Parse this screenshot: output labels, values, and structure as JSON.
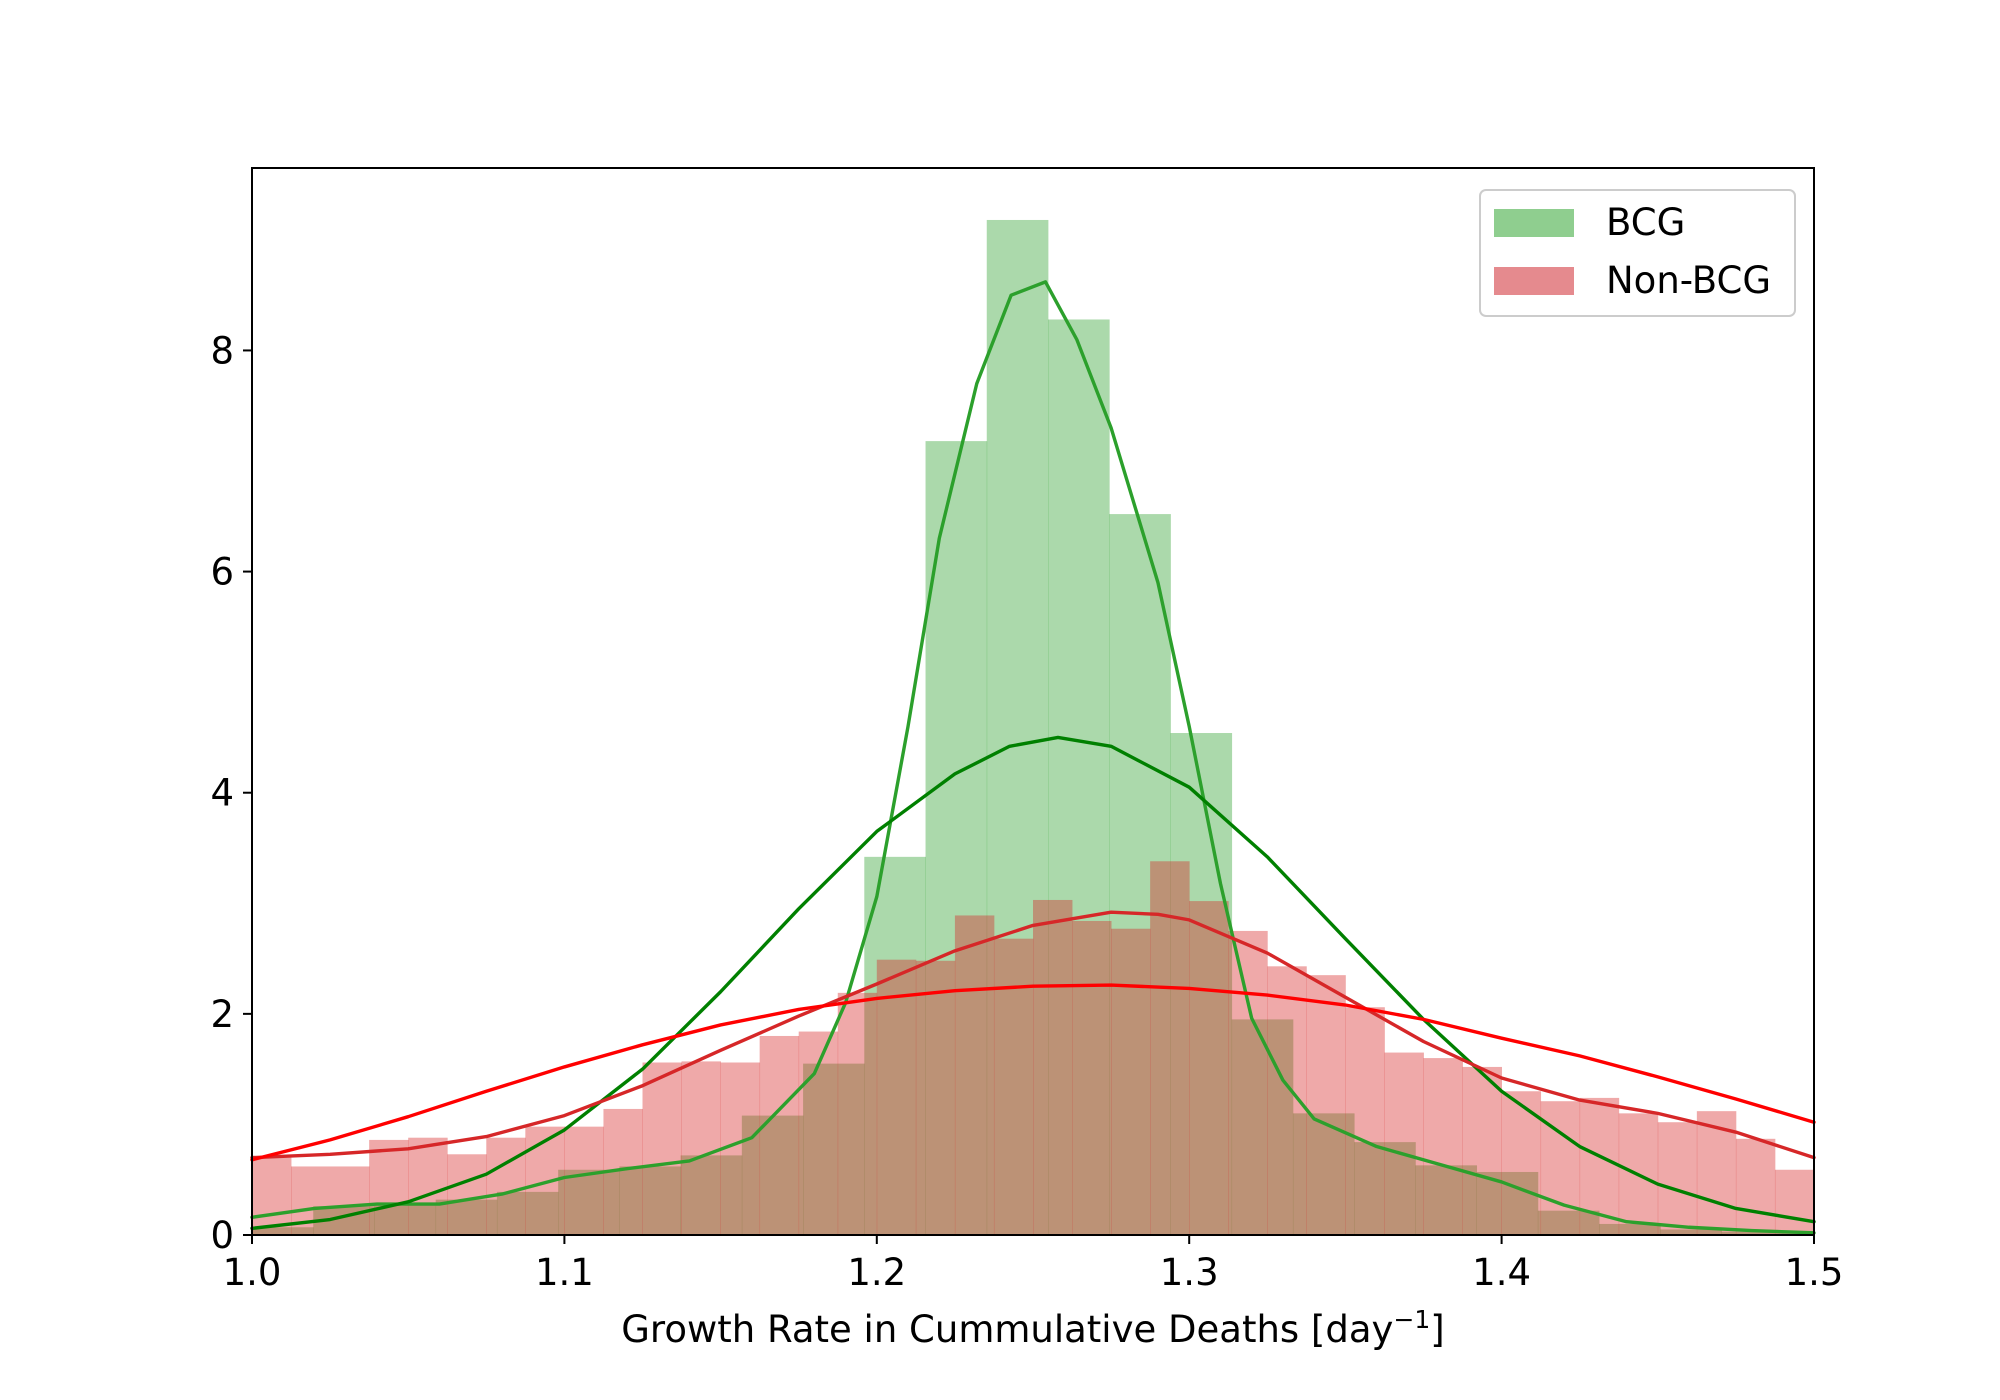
{
  "chart_data": {
    "type": "histogram",
    "title": "",
    "xlabel_prefix": "Growth Rate in Cummulative Deaths [day",
    "xlabel_sup": "−1",
    "xlabel_suffix": "]",
    "ylabel": "",
    "xlim": [
      1.0,
      1.5
    ],
    "ylim": [
      0,
      9.65
    ],
    "xticks": [
      {
        "v": 1.0,
        "label": "1.0"
      },
      {
        "v": 1.1,
        "label": "1.1"
      },
      {
        "v": 1.2,
        "label": "1.2"
      },
      {
        "v": 1.3,
        "label": "1.3"
      },
      {
        "v": 1.4,
        "label": "1.4"
      },
      {
        "v": 1.5,
        "label": "1.5"
      }
    ],
    "yticks": [
      {
        "v": 0,
        "label": "0"
      },
      {
        "v": 2,
        "label": "2"
      },
      {
        "v": 4,
        "label": "4"
      },
      {
        "v": 6,
        "label": "6"
      },
      {
        "v": 8,
        "label": "8"
      }
    ],
    "grid": false,
    "legend_position": "top-right",
    "legend": [
      {
        "label": "BCG",
        "color": "#8fce8f"
      },
      {
        "label": "Non-BCG",
        "color": "#e58a8e"
      }
    ],
    "series": [
      {
        "name": "BCG",
        "kind": "histogram",
        "color": "#2ca02c",
        "alpha": 0.4,
        "bins": [
          [
            1.0,
            1.0196,
            0.07
          ],
          [
            1.0196,
            1.0392,
            0.26
          ],
          [
            1.0392,
            1.0588,
            0.27
          ],
          [
            1.0588,
            1.0784,
            0.32
          ],
          [
            1.0784,
            1.098,
            0.39
          ],
          [
            1.098,
            1.1176,
            0.59
          ],
          [
            1.1176,
            1.1372,
            0.62
          ],
          [
            1.1372,
            1.1568,
            0.72
          ],
          [
            1.1568,
            1.1764,
            1.08
          ],
          [
            1.1764,
            1.196,
            1.55
          ],
          [
            1.196,
            1.2156,
            3.42
          ],
          [
            1.2156,
            1.2352,
            7.18
          ],
          [
            1.2352,
            1.2548,
            9.18
          ],
          [
            1.2548,
            1.2744,
            8.28
          ],
          [
            1.2744,
            1.294,
            6.52
          ],
          [
            1.294,
            1.3136,
            4.54
          ],
          [
            1.3136,
            1.3332,
            1.95
          ],
          [
            1.3332,
            1.3528,
            1.1
          ],
          [
            1.3528,
            1.3724,
            0.84
          ],
          [
            1.3724,
            1.392,
            0.63
          ],
          [
            1.392,
            1.4116,
            0.57
          ],
          [
            1.4116,
            1.4312,
            0.22
          ],
          [
            1.4312,
            1.4508,
            0.1
          ],
          [
            1.4508,
            1.4704,
            0.05
          ],
          [
            1.4704,
            1.49,
            0.03
          ],
          [
            1.49,
            1.5,
            0.02
          ]
        ]
      },
      {
        "name": "Non-BCG",
        "kind": "histogram",
        "color": "#d62728",
        "alpha": 0.4,
        "bins": [
          [
            1.0,
            1.0125,
            0.7
          ],
          [
            1.0125,
            1.0375,
            0.62
          ],
          [
            1.0375,
            1.05,
            0.86
          ],
          [
            1.05,
            1.0625,
            0.88
          ],
          [
            1.0625,
            1.075,
            0.73
          ],
          [
            1.075,
            1.0875,
            0.88
          ],
          [
            1.0875,
            1.1,
            0.98
          ],
          [
            1.1,
            1.1125,
            0.98
          ],
          [
            1.1125,
            1.125,
            1.14
          ],
          [
            1.125,
            1.1375,
            1.56
          ],
          [
            1.1375,
            1.15,
            1.57
          ],
          [
            1.15,
            1.1625,
            1.56
          ],
          [
            1.1625,
            1.175,
            1.8
          ],
          [
            1.175,
            1.1875,
            1.84
          ],
          [
            1.1875,
            1.2,
            2.19
          ],
          [
            1.2,
            1.2125,
            2.49
          ],
          [
            1.2125,
            1.225,
            2.48
          ],
          [
            1.225,
            1.2375,
            2.89
          ],
          [
            1.2375,
            1.25,
            2.68
          ],
          [
            1.25,
            1.2625,
            3.03
          ],
          [
            1.2625,
            1.275,
            2.84
          ],
          [
            1.275,
            1.2875,
            2.77
          ],
          [
            1.2875,
            1.3,
            3.38
          ],
          [
            1.3,
            1.3125,
            3.02
          ],
          [
            1.3125,
            1.325,
            2.75
          ],
          [
            1.325,
            1.3375,
            2.43
          ],
          [
            1.3375,
            1.35,
            2.35
          ],
          [
            1.35,
            1.3625,
            2.06
          ],
          [
            1.3625,
            1.375,
            1.65
          ],
          [
            1.375,
            1.3875,
            1.6
          ],
          [
            1.3875,
            1.4,
            1.52
          ],
          [
            1.4,
            1.4125,
            1.3
          ],
          [
            1.4125,
            1.425,
            1.21
          ],
          [
            1.425,
            1.4375,
            1.24
          ],
          [
            1.4375,
            1.45,
            1.1
          ],
          [
            1.45,
            1.4625,
            1.02
          ],
          [
            1.4625,
            1.475,
            1.12
          ],
          [
            1.475,
            1.4875,
            0.87
          ],
          [
            1.4875,
            1.5,
            0.59
          ]
        ]
      },
      {
        "name": "BCG",
        "kind": "line",
        "color": "#2ca02c",
        "points": [
          [
            1.0,
            0.16
          ],
          [
            1.02,
            0.24
          ],
          [
            1.04,
            0.28
          ],
          [
            1.06,
            0.28
          ],
          [
            1.08,
            0.37
          ],
          [
            1.1,
            0.52
          ],
          [
            1.12,
            0.6
          ],
          [
            1.14,
            0.67
          ],
          [
            1.16,
            0.88
          ],
          [
            1.18,
            1.46
          ],
          [
            1.19,
            2.1
          ],
          [
            1.2,
            3.06
          ],
          [
            1.21,
            4.6
          ],
          [
            1.22,
            6.3
          ],
          [
            1.232,
            7.7
          ],
          [
            1.243,
            8.5
          ],
          [
            1.254,
            8.62
          ],
          [
            1.264,
            8.1
          ],
          [
            1.275,
            7.3
          ],
          [
            1.29,
            5.9
          ],
          [
            1.3,
            4.6
          ],
          [
            1.31,
            3.18
          ],
          [
            1.32,
            1.96
          ],
          [
            1.33,
            1.4
          ],
          [
            1.34,
            1.05
          ],
          [
            1.36,
            0.8
          ],
          [
            1.38,
            0.64
          ],
          [
            1.4,
            0.48
          ],
          [
            1.42,
            0.27
          ],
          [
            1.44,
            0.12
          ],
          [
            1.46,
            0.07
          ],
          [
            1.48,
            0.04
          ],
          [
            1.5,
            0.02
          ]
        ]
      },
      {
        "name": "BCG",
        "kind": "line",
        "color": "#008000",
        "points": [
          [
            1.0,
            0.06
          ],
          [
            1.025,
            0.14
          ],
          [
            1.05,
            0.3
          ],
          [
            1.075,
            0.55
          ],
          [
            1.1,
            0.95
          ],
          [
            1.125,
            1.5
          ],
          [
            1.15,
            2.2
          ],
          [
            1.175,
            2.95
          ],
          [
            1.2,
            3.65
          ],
          [
            1.225,
            4.17
          ],
          [
            1.2425,
            4.42
          ],
          [
            1.258,
            4.5
          ],
          [
            1.275,
            4.42
          ],
          [
            1.3,
            4.05
          ],
          [
            1.325,
            3.42
          ],
          [
            1.35,
            2.68
          ],
          [
            1.375,
            1.95
          ],
          [
            1.4,
            1.3
          ],
          [
            1.425,
            0.8
          ],
          [
            1.45,
            0.46
          ],
          [
            1.475,
            0.24
          ],
          [
            1.5,
            0.12
          ]
        ]
      },
      {
        "name": "Non-BCG",
        "kind": "line",
        "color": "#d62728",
        "points": [
          [
            1.0,
            0.7
          ],
          [
            1.025,
            0.73
          ],
          [
            1.05,
            0.78
          ],
          [
            1.075,
            0.89
          ],
          [
            1.1,
            1.08
          ],
          [
            1.125,
            1.35
          ],
          [
            1.15,
            1.67
          ],
          [
            1.175,
            1.98
          ],
          [
            1.2,
            2.27
          ],
          [
            1.225,
            2.57
          ],
          [
            1.25,
            2.8
          ],
          [
            1.275,
            2.92
          ],
          [
            1.29,
            2.9
          ],
          [
            1.3,
            2.85
          ],
          [
            1.325,
            2.55
          ],
          [
            1.35,
            2.15
          ],
          [
            1.375,
            1.75
          ],
          [
            1.4,
            1.42
          ],
          [
            1.425,
            1.22
          ],
          [
            1.45,
            1.1
          ],
          [
            1.475,
            0.93
          ],
          [
            1.5,
            0.7
          ]
        ]
      },
      {
        "name": "Non-BCG",
        "kind": "line",
        "color": "#ff0000",
        "points": [
          [
            1.0,
            0.68
          ],
          [
            1.025,
            0.86
          ],
          [
            1.05,
            1.07
          ],
          [
            1.075,
            1.3
          ],
          [
            1.1,
            1.52
          ],
          [
            1.125,
            1.72
          ],
          [
            1.15,
            1.9
          ],
          [
            1.175,
            2.04
          ],
          [
            1.2,
            2.14
          ],
          [
            1.225,
            2.21
          ],
          [
            1.25,
            2.25
          ],
          [
            1.275,
            2.26
          ],
          [
            1.3,
            2.23
          ],
          [
            1.325,
            2.17
          ],
          [
            1.35,
            2.08
          ],
          [
            1.375,
            1.95
          ],
          [
            1.4,
            1.78
          ],
          [
            1.425,
            1.62
          ],
          [
            1.45,
            1.43
          ],
          [
            1.475,
            1.23
          ],
          [
            1.5,
            1.02
          ]
        ]
      }
    ]
  }
}
